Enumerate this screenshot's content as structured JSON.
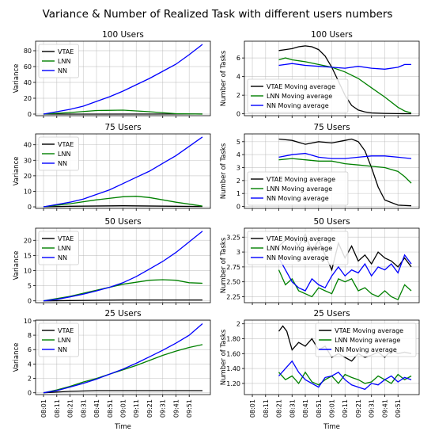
{
  "figure": {
    "title": "Variance & Number of Realized Task with different users numbers"
  },
  "chart_data": [
    {
      "type": "line",
      "row": 0,
      "col": 0,
      "title": "100 Users",
      "ylabel": "Variance",
      "xlabel": "",
      "ylim": [
        -2,
        92
      ],
      "yticks": [
        0,
        20,
        40,
        60,
        80
      ],
      "grid": true,
      "legend": "top-left",
      "series": [
        {
          "name": "VTAE",
          "color": "#000000",
          "x": [
            0,
            120
          ],
          "y": [
            0,
            0.1
          ]
        },
        {
          "name": "LNN",
          "color": "#008000",
          "x": [
            0,
            20,
            40,
            60,
            80,
            100,
            120
          ],
          "y": [
            0,
            2,
            4.5,
            5,
            3,
            0.5,
            0
          ]
        },
        {
          "name": "NN",
          "color": "#0000ff",
          "x": [
            0,
            10,
            20,
            30,
            40,
            50,
            60,
            70,
            80,
            90,
            100,
            110,
            120
          ],
          "y": [
            0,
            3,
            6,
            10,
            16,
            22,
            29,
            37,
            45,
            54,
            63,
            75,
            88
          ]
        }
      ]
    },
    {
      "type": "line",
      "row": 0,
      "col": 1,
      "title": "100 Users",
      "ylabel": "Number of Tasks",
      "xlabel": "",
      "ylim": [
        -0.2,
        7.8
      ],
      "yticks": [
        0,
        2,
        4,
        6
      ],
      "grid": true,
      "legend": "bottom-left",
      "series": [
        {
          "name": "VTAE Moving average",
          "color": "#000000",
          "x": [
            20,
            25,
            30,
            35,
            40,
            45,
            50,
            55,
            60,
            65,
            70,
            75,
            80,
            85,
            90,
            100,
            110,
            120
          ],
          "y": [
            6.8,
            6.9,
            7.0,
            7.2,
            7.3,
            7.2,
            6.9,
            6.2,
            5.0,
            3.5,
            2.0,
            0.9,
            0.4,
            0.2,
            0.1,
            0.05,
            0.02,
            0.01
          ]
        },
        {
          "name": "LNN Moving average",
          "color": "#008000",
          "x": [
            20,
            25,
            30,
            40,
            50,
            60,
            70,
            80,
            90,
            100,
            110,
            115,
            120
          ],
          "y": [
            5.8,
            6.0,
            5.8,
            5.6,
            5.3,
            5.0,
            4.5,
            3.8,
            2.8,
            1.8,
            0.7,
            0.3,
            0.1
          ]
        },
        {
          "name": "NN Moving average",
          "color": "#0000ff",
          "x": [
            20,
            30,
            40,
            50,
            60,
            70,
            80,
            90,
            100,
            110,
            115,
            120
          ],
          "y": [
            5.2,
            5.4,
            5.2,
            5.1,
            5.0,
            4.9,
            5.1,
            4.9,
            4.8,
            5.0,
            5.3,
            5.3
          ]
        }
      ]
    },
    {
      "type": "line",
      "row": 1,
      "col": 0,
      "title": "75 Users",
      "ylabel": "Variance",
      "xlabel": "",
      "ylim": [
        -1,
        47
      ],
      "yticks": [
        0,
        10,
        20,
        30,
        40
      ],
      "grid": true,
      "legend": "top-left",
      "series": [
        {
          "name": "VTAE",
          "color": "#000000",
          "x": [
            0,
            20,
            60,
            100,
            120
          ],
          "y": [
            0,
            0.4,
            0.7,
            0.4,
            0.2
          ]
        },
        {
          "name": "LNN",
          "color": "#008000",
          "x": [
            0,
            20,
            40,
            60,
            70,
            80,
            100,
            120
          ],
          "y": [
            0,
            2,
            4.5,
            6.5,
            6.8,
            6,
            3,
            0.5
          ]
        },
        {
          "name": "NN",
          "color": "#0000ff",
          "x": [
            0,
            10,
            20,
            30,
            40,
            50,
            60,
            70,
            80,
            90,
            100,
            110,
            120
          ],
          "y": [
            0,
            1.5,
            3,
            5,
            8,
            11,
            15,
            19,
            23,
            28,
            33,
            39,
            45
          ]
        }
      ]
    },
    {
      "type": "line",
      "row": 1,
      "col": 1,
      "title": "75 Users",
      "ylabel": "Number of Tasks",
      "xlabel": "",
      "ylim": [
        -0.15,
        5.6
      ],
      "yticks": [
        0,
        1,
        2,
        3,
        4,
        5
      ],
      "grid": true,
      "legend": "bottom-left",
      "series": [
        {
          "name": "VTAE Moving average",
          "color": "#000000",
          "x": [
            20,
            30,
            40,
            50,
            60,
            70,
            75,
            80,
            85,
            90,
            95,
            100,
            110,
            120
          ],
          "y": [
            5.2,
            5.1,
            4.8,
            5.0,
            4.9,
            5.1,
            5.2,
            5.0,
            4.3,
            3.0,
            1.5,
            0.5,
            0.1,
            0.05
          ]
        },
        {
          "name": "LNN Moving average",
          "color": "#008000",
          "x": [
            20,
            30,
            40,
            50,
            60,
            70,
            80,
            90,
            100,
            110,
            115,
            120
          ],
          "y": [
            3.6,
            3.7,
            3.6,
            3.5,
            3.5,
            3.3,
            3.2,
            3.1,
            3.0,
            2.7,
            2.3,
            1.8
          ]
        },
        {
          "name": "NN Moving average",
          "color": "#0000ff",
          "x": [
            20,
            30,
            40,
            50,
            60,
            70,
            80,
            90,
            100,
            110,
            120
          ],
          "y": [
            3.8,
            4.0,
            4.1,
            3.8,
            3.7,
            3.7,
            3.8,
            3.9,
            3.9,
            3.8,
            3.7
          ]
        }
      ]
    },
    {
      "type": "line",
      "row": 2,
      "col": 0,
      "title": "50 Users",
      "ylabel": "Variance",
      "xlabel": "",
      "ylim": [
        -0.6,
        24
      ],
      "yticks": [
        0,
        5,
        10,
        15,
        20
      ],
      "grid": true,
      "legend": "top-left",
      "series": [
        {
          "name": "VTAE",
          "color": "#000000",
          "x": [
            0,
            20,
            60,
            120
          ],
          "y": [
            0,
            0.1,
            0.3,
            0.3
          ]
        },
        {
          "name": "LNN",
          "color": "#008000",
          "x": [
            0,
            20,
            40,
            60,
            80,
            90,
            100,
            110,
            120
          ],
          "y": [
            0,
            1.5,
            3.5,
            5.5,
            6.8,
            7,
            6.8,
            6,
            5.8
          ]
        },
        {
          "name": "NN",
          "color": "#0000ff",
          "x": [
            0,
            10,
            20,
            30,
            40,
            50,
            60,
            70,
            80,
            90,
            100,
            110,
            120
          ],
          "y": [
            0,
            0.5,
            1.3,
            2.2,
            3.3,
            4.5,
            6,
            8,
            10.5,
            13,
            16,
            19.5,
            23
          ]
        }
      ]
    },
    {
      "type": "line",
      "row": 2,
      "col": 1,
      "title": "50 Users",
      "ylabel": "Number of Tasks",
      "xlabel": "",
      "ylim": [
        2.15,
        3.4
      ],
      "yticks": [
        2.25,
        2.5,
        2.75,
        3.0,
        3.25
      ],
      "grid": true,
      "legend": "top-left",
      "series": [
        {
          "name": "VTAE Moving average",
          "color": "#000000",
          "x": [
            20,
            25,
            30,
            35,
            40,
            45,
            50,
            55,
            60,
            65,
            70,
            75,
            80,
            85,
            90,
            95,
            100,
            105,
            110,
            115,
            120
          ],
          "y": [
            3.1,
            3.2,
            3.25,
            3.1,
            3.3,
            3.0,
            3.2,
            2.95,
            2.7,
            3.15,
            2.9,
            3.1,
            2.85,
            2.95,
            2.8,
            3.0,
            2.9,
            2.85,
            2.75,
            2.9,
            2.75
          ]
        },
        {
          "name": "LNN Moving average",
          "color": "#008000",
          "x": [
            20,
            25,
            30,
            35,
            40,
            45,
            50,
            55,
            60,
            65,
            70,
            75,
            80,
            85,
            90,
            95,
            100,
            105,
            110,
            115,
            120
          ],
          "y": [
            2.7,
            2.45,
            2.55,
            2.35,
            2.3,
            2.25,
            2.4,
            2.35,
            2.3,
            2.55,
            2.5,
            2.55,
            2.35,
            2.4,
            2.3,
            2.25,
            2.35,
            2.25,
            2.2,
            2.45,
            2.35
          ]
        },
        {
          "name": "NN Moving average",
          "color": "#0000ff",
          "x": [
            20,
            25,
            30,
            35,
            40,
            45,
            50,
            55,
            60,
            65,
            70,
            75,
            80,
            85,
            90,
            95,
            100,
            105,
            110,
            115,
            120
          ],
          "y": [
            2.9,
            2.7,
            2.5,
            2.4,
            2.35,
            2.55,
            2.45,
            2.4,
            2.6,
            2.75,
            2.6,
            2.7,
            2.65,
            2.8,
            2.6,
            2.75,
            2.7,
            2.8,
            2.65,
            2.95,
            2.8
          ]
        }
      ]
    },
    {
      "type": "line",
      "row": 3,
      "col": 0,
      "title": "25 Users",
      "ylabel": "Variance",
      "xlabel": "Time",
      "ylim": [
        -0.25,
        10.1
      ],
      "yticks": [
        0,
        2,
        4,
        6,
        8,
        10
      ],
      "grid": true,
      "legend": "top-left",
      "series": [
        {
          "name": "VTAE",
          "color": "#000000",
          "x": [
            0,
            20,
            40,
            120
          ],
          "y": [
            0,
            0.2,
            0.3,
            0.3
          ]
        },
        {
          "name": "LNN",
          "color": "#008000",
          "x": [
            0,
            10,
            20,
            30,
            40,
            50,
            60,
            70,
            80,
            90,
            100,
            110,
            120
          ],
          "y": [
            0,
            0.4,
            0.9,
            1.5,
            2.0,
            2.6,
            3.2,
            3.8,
            4.5,
            5.2,
            5.8,
            6.3,
            6.7
          ]
        },
        {
          "name": "NN",
          "color": "#0000ff",
          "x": [
            0,
            10,
            20,
            30,
            40,
            50,
            60,
            70,
            80,
            90,
            100,
            110,
            120
          ],
          "y": [
            0,
            0.3,
            0.8,
            1.3,
            1.9,
            2.6,
            3.3,
            4.1,
            5.0,
            5.9,
            6.9,
            8.0,
            9.6
          ]
        }
      ]
    },
    {
      "type": "line",
      "row": 3,
      "col": 1,
      "title": "25 Users",
      "ylabel": "Number of Tasks",
      "xlabel": "Time",
      "ylim": [
        1.05,
        2.05
      ],
      "yticks": [
        1.2,
        1.4,
        1.6,
        1.8,
        2.0
      ],
      "grid": true,
      "legend": "top-right",
      "series": [
        {
          "name": "VTAE Moving average",
          "color": "#000000",
          "x": [
            20,
            23,
            26,
            30,
            35,
            40,
            45,
            50,
            55,
            60,
            65,
            70,
            75,
            80,
            85,
            90,
            95,
            100,
            105,
            110,
            115,
            120
          ],
          "y": [
            1.9,
            1.97,
            1.9,
            1.65,
            1.75,
            1.7,
            1.8,
            1.65,
            1.7,
            1.55,
            1.6,
            1.55,
            1.5,
            1.6,
            1.55,
            1.58,
            1.62,
            1.55,
            1.65,
            1.6,
            1.62,
            1.6
          ]
        },
        {
          "name": "LNN Moving average",
          "color": "#008000",
          "x": [
            20,
            25,
            30,
            35,
            40,
            45,
            50,
            55,
            60,
            65,
            70,
            75,
            80,
            85,
            90,
            95,
            100,
            105,
            110,
            115,
            120
          ],
          "y": [
            1.35,
            1.25,
            1.3,
            1.2,
            1.35,
            1.22,
            1.18,
            1.25,
            1.3,
            1.2,
            1.32,
            1.28,
            1.25,
            1.2,
            1.22,
            1.3,
            1.25,
            1.2,
            1.32,
            1.25,
            1.3
          ]
        },
        {
          "name": "NN Moving average",
          "color": "#0000ff",
          "x": [
            20,
            25,
            30,
            35,
            40,
            45,
            50,
            55,
            60,
            65,
            70,
            75,
            80,
            85,
            90,
            95,
            100,
            105,
            110,
            115,
            120
          ],
          "y": [
            1.3,
            1.4,
            1.5,
            1.35,
            1.25,
            1.2,
            1.15,
            1.28,
            1.3,
            1.35,
            1.25,
            1.18,
            1.15,
            1.12,
            1.2,
            1.18,
            1.25,
            1.3,
            1.22,
            1.28,
            1.25
          ]
        }
      ]
    }
  ],
  "x_axis": {
    "range": [
      -6,
      126
    ],
    "ticks": [
      0,
      10,
      20,
      30,
      40,
      50,
      60,
      70,
      80,
      90,
      100,
      110
    ],
    "labels": [
      "08:01",
      "08:11",
      "08:21",
      "08:31",
      "08:41",
      "08:51",
      "09:01",
      "09:11",
      "09:21",
      "09:31",
      "09:41",
      "09:51"
    ]
  }
}
